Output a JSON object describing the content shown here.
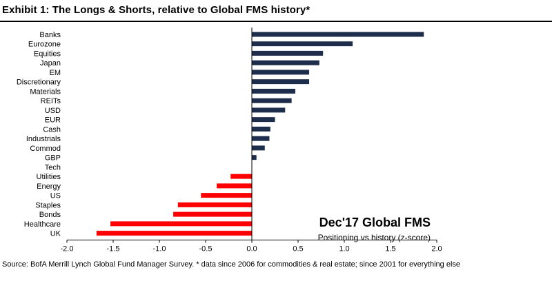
{
  "header": {
    "title": "Exhibit 1: The Longs & Shorts, relative to Global FMS history*"
  },
  "annotation": {
    "title": "Dec'17 Global FMS",
    "subtitle": "Positioning vs history (z-score)"
  },
  "source": "Source: BofA Merrill Lynch Global Fund Manager Survey. * data since 2006 for commodities & real estate; since 2001 for everything else",
  "colors": {
    "positive": "#1f2d4d",
    "negative": "#ff0000",
    "axis": "#000000"
  },
  "chart_data": {
    "type": "bar",
    "orientation": "horizontal",
    "categories": [
      "Banks",
      "Eurozone",
      "Equities",
      "Japan",
      "EM",
      "Discretionary",
      "Materials",
      "REITs",
      "USD",
      "EUR",
      "Cash",
      "Industrials",
      "Commod",
      "GBP",
      "Tech",
      "Utilities",
      "Energy",
      "US",
      "Staples",
      "Bonds",
      "Healthcare",
      "UK"
    ],
    "values": [
      1.86,
      1.09,
      0.77,
      0.73,
      0.62,
      0.62,
      0.47,
      0.43,
      0.36,
      0.25,
      0.2,
      0.19,
      0.14,
      0.05,
      0.0,
      -0.23,
      -0.38,
      -0.55,
      -0.8,
      -0.85,
      -1.53,
      -1.68
    ],
    "xlim": [
      -2.0,
      2.0
    ],
    "xticks": [
      "-2.0",
      "-1.5",
      "-1.0",
      "-0.5",
      "0.0",
      "0.5",
      "1.0",
      "1.5",
      "2.0"
    ],
    "xlabel": "",
    "ylabel": "",
    "grid": false,
    "legend": "none"
  }
}
